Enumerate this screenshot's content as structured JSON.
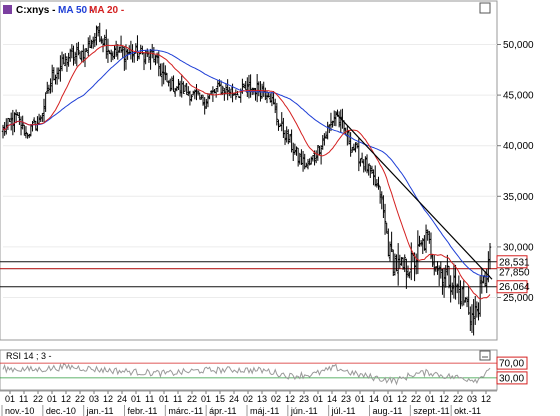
{
  "header": {
    "symbol": "C:xnys -",
    "ma50_label": "MA 50 -",
    "ma20_label": "MA 20 -",
    "colors": {
      "ma50": "#1f3fd6",
      "ma20": "#d42020"
    }
  },
  "rsi_panel": {
    "title": "RSI 14 ; 3 -",
    "levels": [
      "70,00",
      "30,00"
    ]
  },
  "window_buttons": {
    "maximize_icon": "square-icon",
    "close_icon": "minimize-icon"
  },
  "chart_data": {
    "type": "candlestick",
    "instrument": "C:xnys",
    "ylim": [
      21000,
      54000
    ],
    "yticks": [
      "50,000",
      "45,000",
      "40,000",
      "35,000",
      "30,000",
      "25,000"
    ],
    "ytick_values": [
      50000,
      45000,
      40000,
      35000,
      30000,
      25000
    ],
    "horizontal_levels": [
      {
        "label": "28,531",
        "value": 28531
      },
      {
        "label": "27,850",
        "value": 27850
      },
      {
        "label": "26,064",
        "value": 26064
      }
    ],
    "trendline": {
      "from": {
        "x_index": 203,
        "y": 43200
      },
      "to": {
        "x_index": 297,
        "y": 27300
      }
    },
    "xtick_days": [
      "01",
      "11",
      "22",
      "01",
      "12",
      "22",
      "03",
      "12",
      "24",
      "01",
      "11",
      "01",
      "11",
      "22",
      "01",
      "15",
      "24",
      "02",
      "13",
      "02",
      "12",
      "23",
      "01",
      "14",
      "23",
      "01",
      "14",
      "01",
      "12",
      "22",
      "01",
      "12",
      "22",
      "03",
      "12"
    ],
    "months": [
      "nov.-10",
      "dec.-10",
      "jan.-11",
      "febr.-11",
      "márc.-11",
      "ápr.-11",
      "máj.-11",
      "jún.-11",
      "júl.-11",
      "aug.-11",
      "szept.-11",
      "okt.-11"
    ],
    "price_anchors": [
      [
        0,
        41500
      ],
      [
        8,
        42800
      ],
      [
        14,
        41200
      ],
      [
        22,
        42400
      ],
      [
        30,
        46800
      ],
      [
        40,
        48800
      ],
      [
        50,
        49300
      ],
      [
        58,
        51300
      ],
      [
        66,
        49200
      ],
      [
        78,
        49200
      ],
      [
        92,
        48800
      ],
      [
        100,
        46200
      ],
      [
        112,
        45400
      ],
      [
        122,
        44400
      ],
      [
        132,
        45700
      ],
      [
        142,
        45200
      ],
      [
        152,
        45700
      ],
      [
        162,
        45400
      ],
      [
        168,
        42300
      ],
      [
        174,
        40600
      ],
      [
        180,
        38800
      ],
      [
        186,
        37900
      ],
      [
        193,
        39900
      ],
      [
        203,
        43200
      ],
      [
        212,
        40200
      ],
      [
        222,
        37900
      ],
      [
        230,
        35200
      ],
      [
        236,
        29200
      ],
      [
        242,
        27700
      ],
      [
        250,
        28400
      ],
      [
        258,
        30800
      ],
      [
        266,
        27900
      ],
      [
        275,
        26400
      ],
      [
        283,
        24300
      ],
      [
        287,
        22800
      ],
      [
        293,
        26400
      ],
      [
        297,
        28900
      ]
    ],
    "rsi_levels": [
      70,
      30
    ],
    "rsi_ylim": [
      0,
      100
    ],
    "rsi_anchors": [
      [
        0,
        55
      ],
      [
        20,
        52
      ],
      [
        40,
        60
      ],
      [
        60,
        52
      ],
      [
        80,
        46
      ],
      [
        100,
        42
      ],
      [
        120,
        50
      ],
      [
        140,
        52
      ],
      [
        160,
        50
      ],
      [
        175,
        35
      ],
      [
        190,
        40
      ],
      [
        203,
        58
      ],
      [
        215,
        40
      ],
      [
        230,
        28
      ],
      [
        240,
        22
      ],
      [
        250,
        40
      ],
      [
        260,
        45
      ],
      [
        270,
        35
      ],
      [
        283,
        28
      ],
      [
        290,
        25
      ],
      [
        297,
        60
      ]
    ]
  }
}
